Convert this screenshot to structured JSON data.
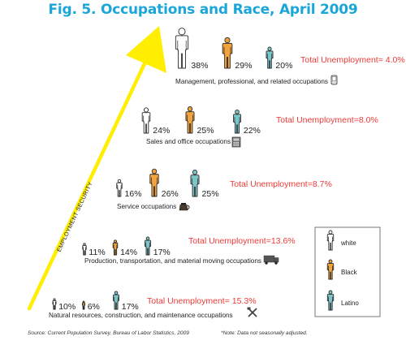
{
  "title": "Fig. 5. Occupations and Race, April 2009",
  "source": "Source: Current Population Survey, Bureau of Labor Statistics, 2009",
  "note": "*Note: Data not seasonally adjusted.",
  "axis_label": "EMPLOYMENT SECURITY",
  "colors": {
    "white_fill": "#ffffff",
    "white_stroke": "#222222",
    "black_fill": "#f2a33c",
    "latino_fill": "#7cc6c9",
    "figure_stroke": "#2b2b2b",
    "arrow": "#ffee00",
    "unemployment_text": "#ee3a37",
    "title": "#1aa6d9"
  },
  "legend": [
    {
      "label": "white",
      "color": "#ffffff"
    },
    {
      "label": "Black",
      "color": "#f2a33c"
    },
    {
      "label": "Latino",
      "color": "#7cc6c9"
    }
  ],
  "chart_data": {
    "type": "pictogram",
    "title": "Fig. 5. Occupations and Race, April 2009",
    "unit": "%",
    "series": [
      "white",
      "Black",
      "Latino"
    ],
    "categories": [
      {
        "name": "Management, professional, and related occupations",
        "values": [
          38,
          29,
          20
        ],
        "labels": [
          "38%",
          "29%",
          "20%"
        ],
        "unemployment": "Total Unemployment= 4.0%",
        "unemployment_value": 4.0,
        "icon": "phone-icon"
      },
      {
        "name": "Sales and office occupations",
        "values": [
          24,
          25,
          22
        ],
        "labels": [
          "24%",
          "25%",
          "22%"
        ],
        "unemployment": "Total Unemployment=8.0%",
        "unemployment_value": 8.0,
        "icon": "cash-register-icon"
      },
      {
        "name": "Service occupations",
        "values": [
          16,
          26,
          25
        ],
        "labels": [
          "16%",
          "26%",
          "25%"
        ],
        "unemployment": "Total Unemployment=8.7%",
        "unemployment_value": 8.7,
        "icon": "coffee-pot-icon"
      },
      {
        "name": "Production, transportation, and material moving occupations",
        "values": [
          11,
          14,
          17
        ],
        "labels": [
          "11%",
          "14%",
          "17%"
        ],
        "unemployment": "Total Unemployment=13.6%",
        "unemployment_value": 13.6,
        "icon": "truck-icon"
      },
      {
        "name": "Natural resources, construction, and maintenance occupations",
        "values": [
          10,
          6,
          17
        ],
        "labels": [
          "10%",
          "6%",
          "17%"
        ],
        "unemployment": "Total Unemployment= 15.3%",
        "unemployment_value": 15.3,
        "icon": "tools-icon"
      }
    ]
  }
}
